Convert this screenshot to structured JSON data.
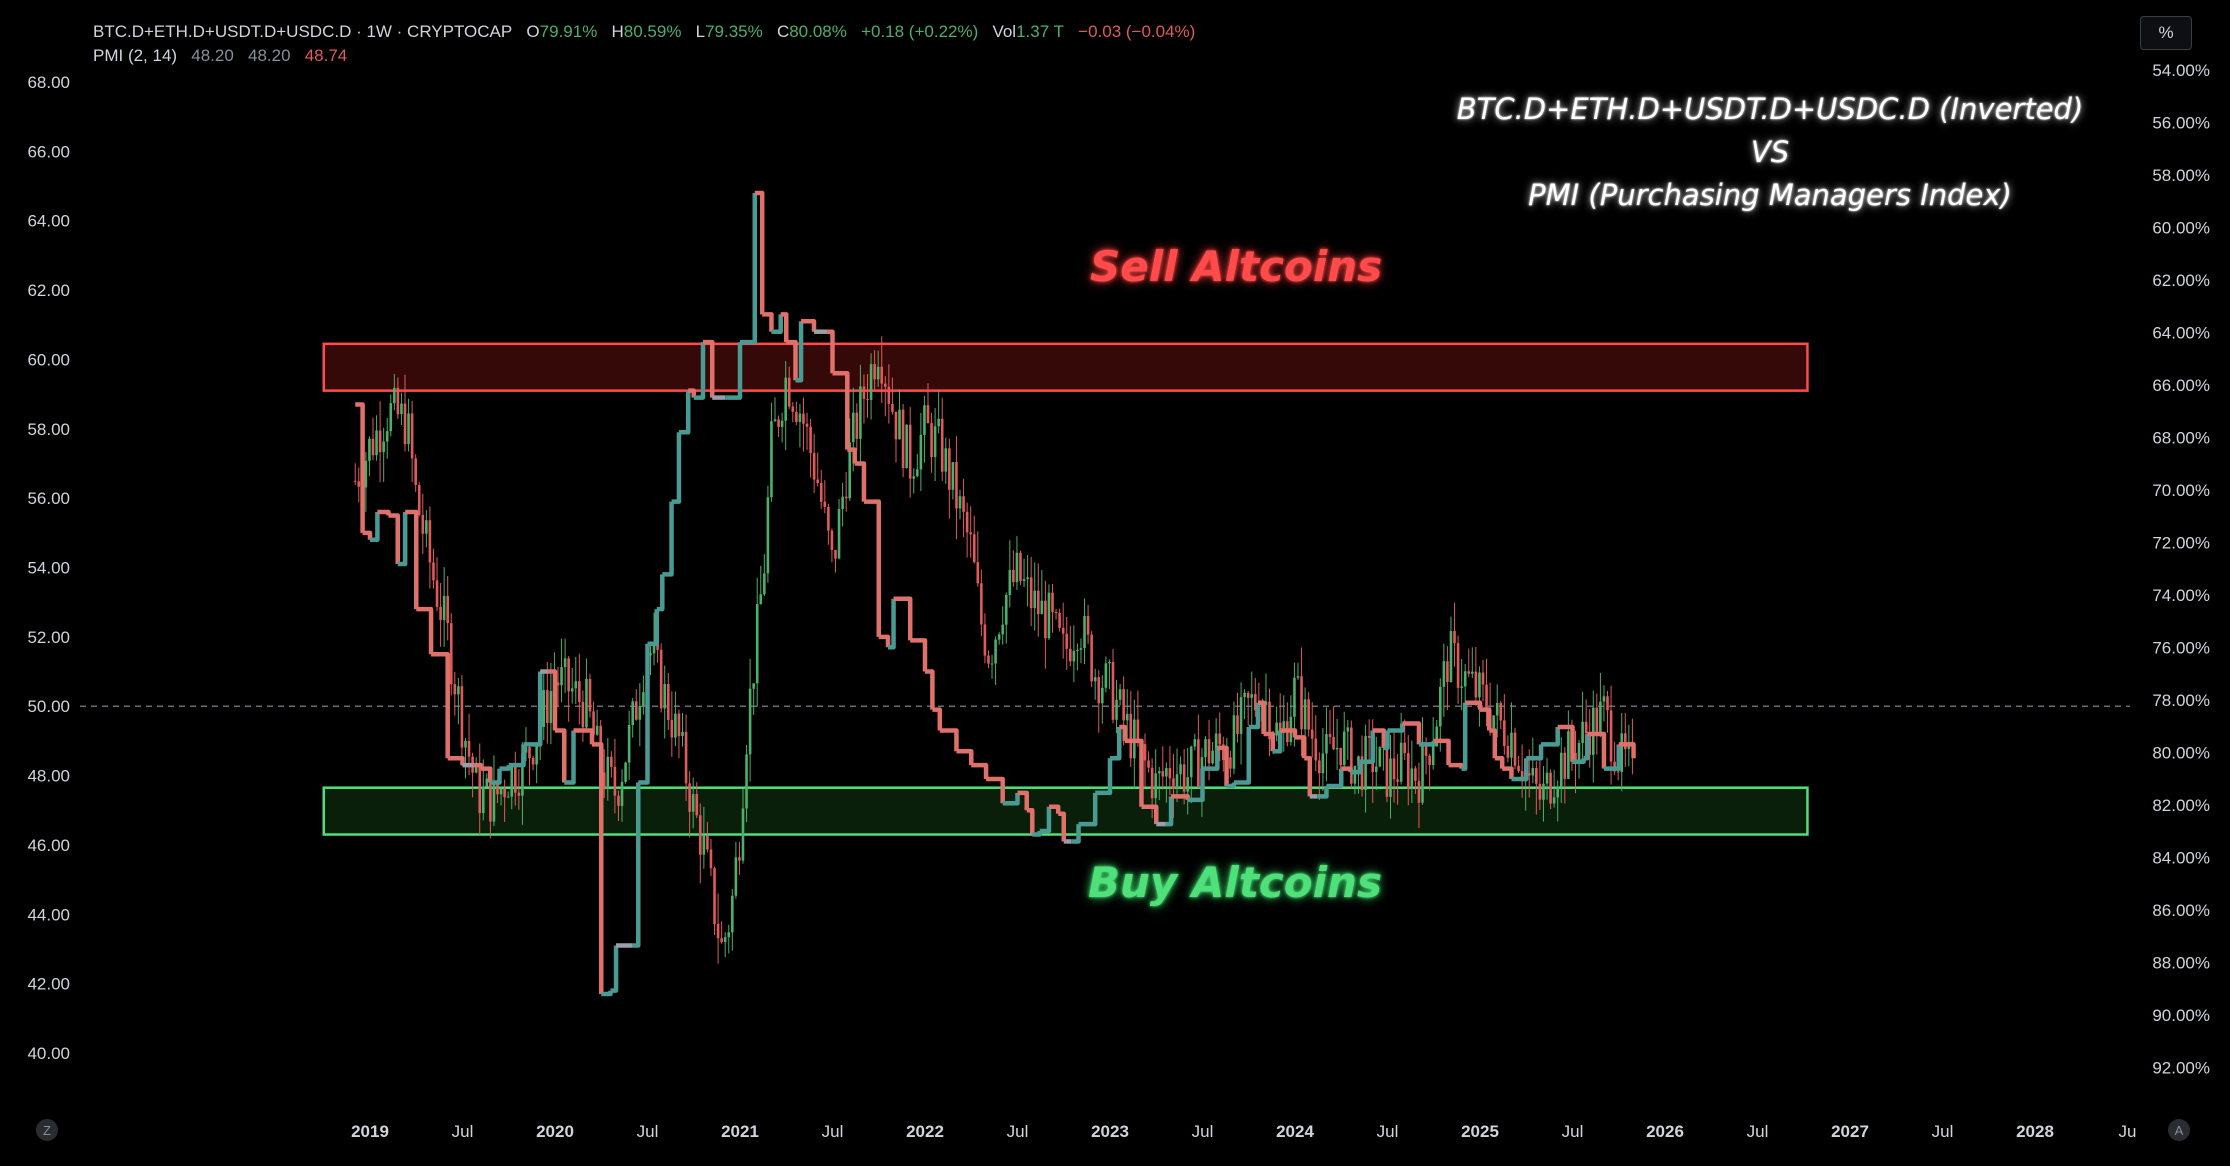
{
  "header": {
    "symbol": "BTC.D+ETH.D+USDT.D+USDC.D · 1W · CRYPTOCAP",
    "o_label": "O",
    "o_value": "79.91%",
    "h_label": "H",
    "h_value": "80.59%",
    "l_label": "L",
    "l_value": "79.35%",
    "c_label": "C",
    "c_value": "80.08%",
    "change": "+0.18 (+0.22%)",
    "vol_label": "Vol",
    "vol_value": "1.37 T",
    "vol_change": "−0.03 (−0.04%)",
    "indicator": "PMI (2, 14)",
    "ind_v1": "48.20",
    "ind_v2": "48.20",
    "ind_v3": "48.74"
  },
  "scale_button": "%",
  "corner_left": "Z",
  "corner_right": "A",
  "overlay_title": [
    "BTC.D+ETH.D+USDT.D+USDC.D (Inverted)",
    "VS",
    "PMI (Purchasing Managers Index)"
  ],
  "zones": {
    "sell_label": "Sell Altcoins",
    "buy_label": "Buy Altcoins"
  },
  "colors": {
    "sell_zone": "#ff4b4b",
    "buy_zone": "#4fe07a",
    "pmi_up": "#4a9a94",
    "pmi_down": "#e0706a",
    "pmi_flat": "#9a9ea8",
    "candle_up": "#4caf6a",
    "candle_down": "#e05a5a"
  },
  "chart_data": {
    "type": "line",
    "left_axis": {
      "ticks": [
        "68.00",
        "66.00",
        "64.00",
        "62.00",
        "60.00",
        "58.00",
        "56.00",
        "54.00",
        "52.00",
        "50.00",
        "48.00",
        "46.00",
        "44.00",
        "42.00",
        "40.00"
      ],
      "range": [
        38.5,
        69.5
      ]
    },
    "right_axis": {
      "ticks": [
        "54.00%",
        "56.00%",
        "58.00%",
        "60.00%",
        "62.00%",
        "64.00%",
        "66.00%",
        "68.00%",
        "70.00%",
        "72.00%",
        "74.00%",
        "76.00%",
        "78.00%",
        "80.00%",
        "82.00%",
        "84.00%",
        "86.00%",
        "88.00%",
        "90.00%",
        "92.00%"
      ],
      "inverted": true
    },
    "x_ticks": [
      "2019",
      "Jul",
      "2020",
      "Jul",
      "2021",
      "Jul",
      "2022",
      "Jul",
      "2023",
      "Jul",
      "2024",
      "Jul",
      "2025",
      "Jul",
      "2026",
      "Jul",
      "2027",
      "Jul",
      "2028",
      "Ju"
    ],
    "x_ticks_bold": [
      true,
      false,
      true,
      false,
      true,
      false,
      true,
      false,
      true,
      false,
      true,
      false,
      true,
      false,
      true,
      false,
      true,
      false,
      true,
      false
    ],
    "x_range": [
      2018.95,
      2028.5
    ],
    "reference_line": 50,
    "sell_zone": {
      "y_min": 59.1,
      "y_max": 60.45,
      "x_start": 2018.75,
      "x_end": 2026.77
    },
    "buy_zone": {
      "y_min": 46.3,
      "y_max": 47.65,
      "x_start": 2018.75,
      "x_end": 2026.77
    },
    "pmi_series": {
      "name": "PMI (2, 14)",
      "x": [
        2018.92,
        2018.96,
        2019.0,
        2019.04,
        2019.1,
        2019.15,
        2019.19,
        2019.25,
        2019.33,
        2019.42,
        2019.5,
        2019.56,
        2019.6,
        2019.65,
        2019.7,
        2019.75,
        2019.83,
        2019.92,
        2019.96,
        2020.0,
        2020.05,
        2020.1,
        2020.2,
        2020.25,
        2020.3,
        2020.33,
        2020.42,
        2020.45,
        2020.5,
        2020.55,
        2020.58,
        2020.63,
        2020.67,
        2020.72,
        2020.75,
        2020.8,
        2020.85,
        2020.92,
        2021.0,
        2021.08,
        2021.12,
        2021.17,
        2021.22,
        2021.25,
        2021.3,
        2021.33,
        2021.4,
        2021.47,
        2021.5,
        2021.58,
        2021.62,
        2021.67,
        2021.75,
        2021.8,
        2021.83,
        2021.92,
        2022.0,
        2022.04,
        2022.08,
        2022.17,
        2022.25,
        2022.33,
        2022.42,
        2022.5,
        2022.55,
        2022.58,
        2022.62,
        2022.67,
        2022.72,
        2022.75,
        2022.79,
        2022.83,
        2022.92,
        2023.0,
        2023.05,
        2023.08,
        2023.17,
        2023.25,
        2023.3,
        2023.33,
        2023.42,
        2023.5,
        2023.58,
        2023.63,
        2023.67,
        2023.75,
        2023.8,
        2023.83,
        2023.88,
        2023.92,
        2024.0,
        2024.05,
        2024.08,
        2024.12,
        2024.17,
        2024.25,
        2024.3,
        2024.35,
        2024.42,
        2024.48,
        2024.5,
        2024.58,
        2024.67,
        2024.75,
        2024.83,
        2024.9,
        2024.92,
        2025.0,
        2025.05,
        2025.08,
        2025.12,
        2025.17,
        2025.25,
        2025.33,
        2025.42,
        2025.5,
        2025.56,
        2025.58,
        2025.67,
        2025.75,
        2025.83
      ],
      "y": [
        58.7,
        55.0,
        54.8,
        55.6,
        55.5,
        54.1,
        55.6,
        52.8,
        51.5,
        48.5,
        48.3,
        48.3,
        48.2,
        47.8,
        48.2,
        48.3,
        48.9,
        51.0,
        51.0,
        49.3,
        47.8,
        49.3,
        48.9,
        41.7,
        41.8,
        43.1,
        43.1,
        47.8,
        51.8,
        52.8,
        53.8,
        55.9,
        57.9,
        59.1,
        58.9,
        60.5,
        58.9,
        58.9,
        60.5,
        64.8,
        61.3,
        60.8,
        61.3,
        60.5,
        59.4,
        61.1,
        60.8,
        60.8,
        59.6,
        57.4,
        57.0,
        55.9,
        52.0,
        51.7,
        53.1,
        51.9,
        51.0,
        49.9,
        49.3,
        48.7,
        48.3,
        47.9,
        47.2,
        47.5,
        47.0,
        46.3,
        46.4,
        47.1,
        46.9,
        46.1,
        46.1,
        46.6,
        47.5,
        48.5,
        49.4,
        49.0,
        47.1,
        46.6,
        46.6,
        47.4,
        47.3,
        48.2,
        48.8,
        47.7,
        47.8,
        49.4,
        50.1,
        49.2,
        48.7,
        49.3,
        49.1,
        48.5,
        47.4,
        47.4,
        47.7,
        48.2,
        48.1,
        48.4,
        49.3,
        48.8,
        49.3,
        49.5,
        48.9,
        49.0,
        48.3,
        48.2,
        50.1,
        49.9,
        49.3,
        48.5,
        48.2,
        47.9,
        48.5,
        48.9,
        49.4,
        48.4,
        48.5,
        49.2,
        48.2,
        48.9,
        48.5
      ]
    },
    "dominance_series": {
      "name": "BTC.D+ETH.D+USDT.D+USDC.D (Inverted)",
      "x": [
        2018.92,
        2019.0,
        2019.1,
        2019.2,
        2019.25,
        2019.33,
        2019.42,
        2019.5,
        2019.58,
        2019.67,
        2019.75,
        2019.83,
        2019.92,
        2020.0,
        2020.08,
        2020.17,
        2020.25,
        2020.33,
        2020.42,
        2020.5,
        2020.58,
        2020.67,
        2020.75,
        2020.8,
        2020.85,
        2020.9,
        2020.95,
        2021.0,
        2021.03,
        2021.08,
        2021.13,
        2021.17,
        2021.25,
        2021.33,
        2021.42,
        2021.5,
        2021.58,
        2021.67,
        2021.75,
        2021.83,
        2021.92,
        2022.0,
        2022.08,
        2022.17,
        2022.25,
        2022.3,
        2022.35,
        2022.42,
        2022.5,
        2022.58,
        2022.67,
        2022.75,
        2022.83,
        2022.92,
        2023.0,
        2023.08,
        2023.17,
        2023.25,
        2023.33,
        2023.42,
        2023.5,
        2023.58,
        2023.67,
        2023.75,
        2023.83,
        2023.92,
        2024.0,
        2024.08,
        2024.17,
        2024.25,
        2024.33,
        2024.42,
        2024.5,
        2024.58,
        2024.67,
        2024.75,
        2024.83,
        2024.92,
        2025.0,
        2025.05,
        2025.1,
        2025.17,
        2025.25,
        2025.33,
        2025.42,
        2025.5,
        2025.58,
        2025.67,
        2025.75,
        2025.83
      ],
      "y": [
        56.5,
        57.5,
        58.5,
        58.2,
        56.0,
        54.0,
        52.0,
        49.5,
        47.5,
        47.3,
        48.0,
        48.3,
        49.5,
        50.8,
        50.5,
        50.0,
        48.2,
        47.5,
        49.5,
        51.8,
        50.5,
        49.0,
        47.0,
        46.0,
        44.5,
        43.0,
        44.0,
        46.5,
        49.0,
        51.5,
        54.0,
        57.5,
        59.5,
        58.5,
        56.5,
        54.0,
        57.0,
        59.0,
        60.5,
        58.5,
        57.0,
        58.0,
        57.5,
        56.0,
        54.5,
        52.5,
        51.5,
        53.0,
        53.8,
        53.0,
        52.5,
        51.5,
        52.5,
        51.0,
        50.5,
        49.5,
        48.5,
        47.7,
        48.3,
        48.0,
        48.6,
        48.8,
        49.0,
        50.0,
        50.3,
        49.0,
        50.5,
        49.3,
        48.5,
        49.0,
        48.2,
        48.5,
        48.0,
        48.3,
        48.0,
        49.3,
        51.5,
        50.8,
        50.3,
        50.0,
        49.5,
        49.2,
        48.0,
        47.3,
        48.3,
        48.7,
        49.3,
        49.8,
        48.5,
        48.2
      ]
    }
  }
}
